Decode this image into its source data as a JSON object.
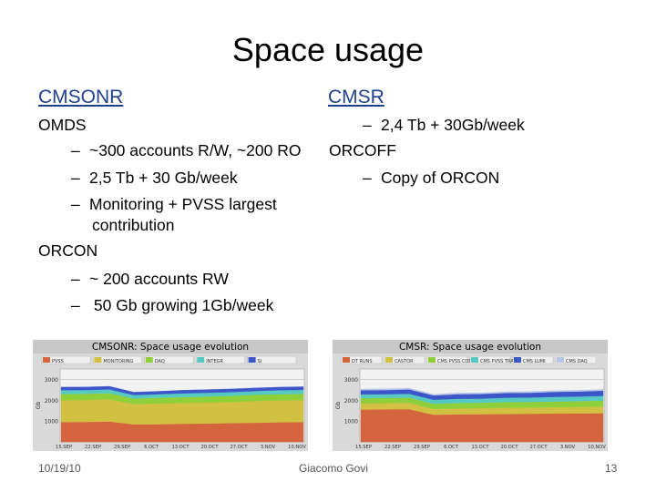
{
  "slide": {
    "title": "Space usage",
    "left_heading": "CMSONR",
    "right_heading": "CMSR",
    "left": {
      "omds": "OMDS",
      "omds_b1": "~300 accounts R/W, ~200 RO",
      "omds_b2": "2,5 Tb + 30 Gb/week",
      "omds_b3a": "Monitoring + PVSS largest",
      "omds_b3b": "contribution",
      "orcon": "ORCON",
      "orcon_b1": "~ 200 accounts RW",
      "orcon_b2": " 50 Gb growing 1Gb/week"
    },
    "right": {
      "b1": "2,4 Tb + 30Gb/week",
      "orcoff": "ORCOFF",
      "orcoff_b1": "Copy of ORCON"
    },
    "bullet_dash": "–",
    "footer": {
      "date": "10/19/10",
      "author": "Giacomo Govi",
      "page": "13"
    }
  },
  "chart_data": [
    {
      "type": "area",
      "title": "CMSONR: Space usage evolution",
      "ylabel": "Gb",
      "ylim": [
        0,
        3500
      ],
      "yticks": [
        1000,
        2000,
        3000
      ],
      "xticks": [
        "15.SEP",
        "22.SEP",
        "29.SEP",
        "6.OCT",
        "13.OCT",
        "20.OCT",
        "27.OCT",
        "3.NOV",
        "10.NOV"
      ],
      "series": [
        {
          "name": "PVSS",
          "color": "#d4643c",
          "values": [
            950,
            960,
            980,
            840,
            850,
            870,
            880,
            900,
            920,
            940,
            950
          ]
        },
        {
          "name": "MONITORING",
          "color": "#d2c042",
          "values": [
            1050,
            1050,
            1060,
            970,
            990,
            1000,
            1010,
            1020,
            1040,
            1050,
            1060
          ]
        },
        {
          "name": "DAQ",
          "color": "#8fcf3a",
          "values": [
            300,
            300,
            300,
            270,
            280,
            280,
            290,
            290,
            300,
            300,
            300
          ]
        },
        {
          "name": "INTEGR",
          "color": "#56c9c2",
          "values": [
            180,
            180,
            180,
            170,
            170,
            180,
            180,
            180,
            180,
            190,
            190
          ]
        },
        {
          "name": "SI",
          "color": "#3c55c9",
          "values": [
            150,
            150,
            150,
            140,
            140,
            150,
            150,
            150,
            150,
            150,
            150
          ]
        }
      ]
    },
    {
      "type": "area",
      "title": "CMSR: Space usage evolution",
      "ylabel": "Gb",
      "ylim": [
        0,
        3500
      ],
      "yticks": [
        1000,
        2000,
        3000
      ],
      "xticks": [
        "15.SEP",
        "22.SEP",
        "29.SEP",
        "6.OCT",
        "13.OCT",
        "20.OCT",
        "27.OCT",
        "3.NOV",
        "10.NOV"
      ],
      "series": [
        {
          "name": "DT RUNS",
          "color": "#d4643c",
          "values": [
            1550,
            1560,
            1570,
            1300,
            1320,
            1330,
            1340,
            1350,
            1360,
            1370,
            1380
          ]
        },
        {
          "name": "CASTOR",
          "color": "#d2c042",
          "values": [
            300,
            300,
            300,
            280,
            290,
            290,
            300,
            300,
            300,
            310,
            310
          ]
        },
        {
          "name": "CMS PVSS COND",
          "color": "#8fcf3a",
          "values": [
            250,
            250,
            250,
            250,
            260,
            260,
            270,
            270,
            280,
            280,
            290
          ]
        },
        {
          "name": "CMS PVSS TRACKER",
          "color": "#56c9c2",
          "values": [
            180,
            180,
            190,
            190,
            200,
            200,
            210,
            210,
            220,
            220,
            230
          ]
        },
        {
          "name": "CMS LUMI",
          "color": "#3c55c9",
          "values": [
            200,
            200,
            210,
            210,
            220,
            220,
            230,
            230,
            240,
            240,
            250
          ]
        },
        {
          "name": "CMS DAQ",
          "color": "#b8c4e6",
          "values": [
            60,
            60,
            60,
            60,
            60,
            60,
            60,
            60,
            60,
            60,
            60
          ]
        }
      ]
    }
  ]
}
